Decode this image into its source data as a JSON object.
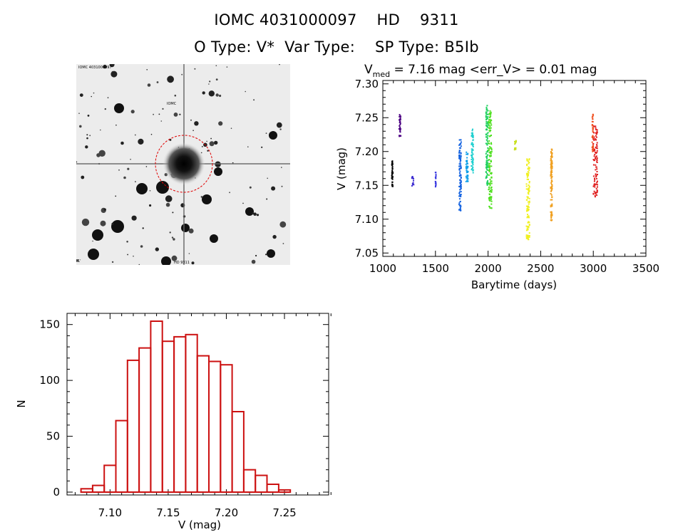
{
  "header": {
    "line1": "IOMC 4031000097    HD    9311",
    "line2": "O Type: V*  Var Type:    SP Type: B5Ib"
  },
  "finder": {
    "top_left_label": "IOMC 4031000097",
    "circle_label": "IOMC",
    "bottom_center_label": "HD 9311",
    "bottom_left_label": "1'"
  },
  "chart_data": [
    {
      "type": "scatter",
      "title_prefix": "V",
      "title_subscript": "med",
      "title_rest": " = 7.16 mag <err_V> = 0.01 mag",
      "xlabel": "Barytime (days)",
      "ylabel": "V (mag)",
      "xlim": [
        1000,
        3500
      ],
      "ylim": [
        7.305,
        7.045
      ],
      "y_inverted": true,
      "xticks": [
        1000,
        1500,
        2000,
        2500,
        3000,
        3500
      ],
      "yticks": [
        7.05,
        7.1,
        7.15,
        7.2,
        7.25,
        7.3
      ],
      "series": [
        {
          "color": "#000000",
          "x": [
            1085,
            1095
          ],
          "ymin": 7.147,
          "ymax": 7.19
        },
        {
          "color": "#4b0082",
          "x": [
            1155,
            1170
          ],
          "ymin": 7.22,
          "ymax": 7.255
        },
        {
          "color": "#3a2ad0",
          "x": [
            1275,
            1295
          ],
          "ymin": 7.148,
          "ymax": 7.165
        },
        {
          "color": "#3a3ae0",
          "x": [
            1500,
            1505
          ],
          "ymin": 7.147,
          "ymax": 7.17
        },
        {
          "color": "#1060e0",
          "x": [
            1725,
            1745
          ],
          "ymin": 7.112,
          "ymax": 7.218
        },
        {
          "color": "#10a0e8",
          "x": [
            1790,
            1810
          ],
          "ymin": 7.155,
          "ymax": 7.2
        },
        {
          "color": "#20d0d0",
          "x": [
            1840,
            1860
          ],
          "ymin": 7.165,
          "ymax": 7.235
        },
        {
          "color": "#20d060",
          "x": [
            1980,
            2000
          ],
          "ymin": 7.15,
          "ymax": 7.268
        },
        {
          "color": "#50e020",
          "x": [
            2005,
            2035
          ],
          "ymin": 7.115,
          "ymax": 7.262
        },
        {
          "color": "#c8e020",
          "x": [
            2250,
            2270
          ],
          "ymin": 7.202,
          "ymax": 7.218
        },
        {
          "color": "#f0f020",
          "x": [
            2365,
            2395
          ],
          "ymin": 7.07,
          "ymax": 7.19
        },
        {
          "color": "#f0a020",
          "x": [
            2595,
            2610
          ],
          "ymin": 7.097,
          "ymax": 7.205
        },
        {
          "color": "#f05020",
          "x": [
            2990,
            3000
          ],
          "ymin": 7.2,
          "ymax": 7.255
        },
        {
          "color": "#e02020",
          "x": [
            3000,
            3040
          ],
          "ymin": 7.133,
          "ymax": 7.24
        }
      ]
    },
    {
      "type": "bar",
      "xlabel": "V (mag)",
      "ylabel": "N",
      "xlim": [
        7.063,
        7.288
      ],
      "ylim": [
        0,
        160
      ],
      "xticks": [
        7.1,
        7.15,
        7.2,
        7.25
      ],
      "yticks": [
        0,
        50,
        100,
        150
      ],
      "bin_width": 0.01,
      "bin_start": 7.075,
      "values": [
        3,
        6,
        24,
        64,
        118,
        129,
        153,
        135,
        139,
        141,
        122,
        117,
        114,
        72,
        20,
        15,
        7,
        2
      ],
      "bar_color": "#cc1111"
    }
  ]
}
